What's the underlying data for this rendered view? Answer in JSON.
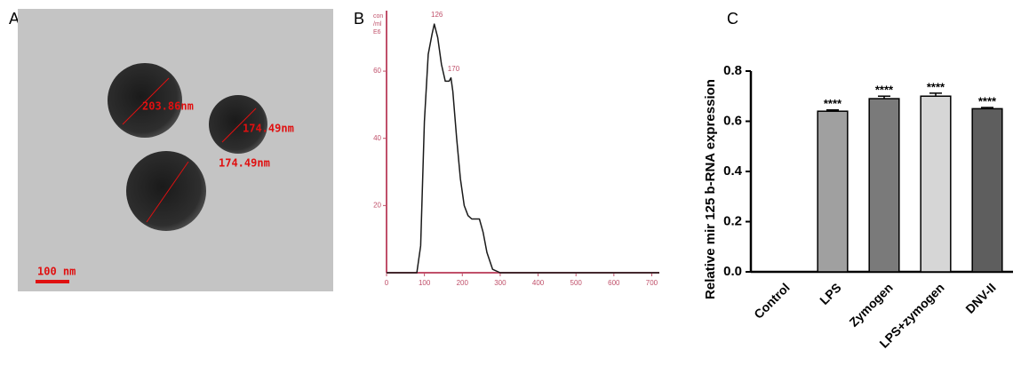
{
  "panel_labels": [
    "A",
    "B",
    "C"
  ],
  "micrograph": {
    "measurements": [
      "203.86nm",
      "174.49nm",
      "174.49nm"
    ],
    "scale_bar": "100 nm"
  },
  "chart_data": [
    {
      "type": "line",
      "y_unit_lines": [
        "con",
        "/ml",
        "E6"
      ],
      "x": [
        0,
        80,
        90,
        100,
        110,
        120,
        126,
        135,
        145,
        155,
        165,
        170,
        175,
        185,
        195,
        205,
        215,
        225,
        235,
        245,
        255,
        265,
        280,
        300,
        720
      ],
      "values": [
        0,
        0,
        8,
        45,
        65,
        71,
        74,
        70,
        62,
        57,
        57,
        58,
        54,
        40,
        28,
        20,
        17,
        16,
        16,
        16,
        12,
        6,
        1,
        0,
        0
      ],
      "color": "#1a1a1a",
      "axis_color": "#c0506a",
      "xlim": [
        0,
        720
      ],
      "xticks": [
        0,
        100,
        200,
        300,
        400,
        500,
        600,
        700
      ],
      "ylim": [
        0,
        78
      ],
      "yticks": [
        20,
        40,
        60
      ],
      "annotations": [
        {
          "text": "126",
          "x": 126,
          "y": 74
        },
        {
          "text": "170",
          "x": 170,
          "y": 58
        }
      ]
    },
    {
      "type": "bar",
      "y_label": "Relative mir 125 b-RNA expression",
      "categories": [
        "Control",
        "LPS",
        "Zymogen",
        "LPS+zymogen",
        "DNV-II"
      ],
      "values": [
        0,
        0.64,
        0.69,
        0.7,
        0.65
      ],
      "errors": [
        0,
        0.005,
        0.01,
        0.012,
        0.005
      ],
      "colors": [
        "#888888",
        "#a0a0a0",
        "#7a7a7a",
        "#d6d6d6",
        "#5e5e5e"
      ],
      "significance": [
        null,
        "****",
        "****",
        "****",
        "****"
      ],
      "ylim": [
        0,
        0.8
      ],
      "yticks": [
        {
          "value": 0,
          "label": "0.0"
        },
        0.2,
        0.4,
        0.6,
        0.8
      ]
    }
  ]
}
